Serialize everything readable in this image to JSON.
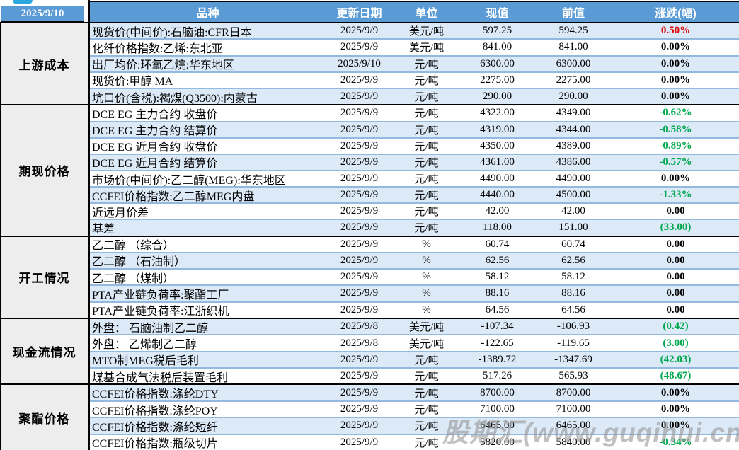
{
  "header": {
    "date": "2025/9/10",
    "columns": [
      "品种",
      "更新日期",
      "单位",
      "现值",
      "前值",
      "涨跌(幅)"
    ]
  },
  "watermark": "股期汇(www.guqihui.cn)",
  "colors": {
    "header_bg": "#5B9BD5",
    "stripe_blue": "#DCE9F7",
    "row_line": "#94B9DF",
    "cat_bg": "#EDEDED",
    "up_red": "#DD0000",
    "down_green": "#00A84F"
  },
  "sections": [
    {
      "category": "上游成本",
      "rows": [
        {
          "name": "现货价(中间价):石脑油:CFR日本",
          "date": "2025/9/9",
          "unit": "美元/吨",
          "current": "597.25",
          "previous": "594.25",
          "change": "0.50%",
          "trend": "up"
        },
        {
          "name": "化纤价格指数:乙烯:东北亚",
          "date": "2025/9/9",
          "unit": "美元/吨",
          "current": "841.00",
          "previous": "841.00",
          "change": "0.00%",
          "trend": "flat"
        },
        {
          "name": "出厂均价:环氧乙烷:华东地区",
          "date": "2025/9/10",
          "unit": "元/吨",
          "current": "6300.00",
          "previous": "6300.00",
          "change": "0.00%",
          "trend": "flat"
        },
        {
          "name": "现货价:甲醇 MA",
          "date": "2025/9/9",
          "unit": "元/吨",
          "current": "2275.00",
          "previous": "2275.00",
          "change": "0.00%",
          "trend": "flat"
        },
        {
          "name": "坑口价(含税):褐煤(Q3500):内蒙古",
          "date": "2025/9/9",
          "unit": "元/吨",
          "current": "290.00",
          "previous": "290.00",
          "change": "0.00%",
          "trend": "flat"
        }
      ]
    },
    {
      "category": "期现价格",
      "rows": [
        {
          "name": "DCE EG 主力合约 收盘价",
          "date": "2025/9/9",
          "unit": "元/吨",
          "current": "4322.00",
          "previous": "4349.00",
          "change": "-0.62%",
          "trend": "down"
        },
        {
          "name": "DCE EG 主力合约 结算价",
          "date": "2025/9/9",
          "unit": "元/吨",
          "current": "4319.00",
          "previous": "4344.00",
          "change": "-0.58%",
          "trend": "down"
        },
        {
          "name": "DCE EG 近月合约 收盘价",
          "date": "2025/9/9",
          "unit": "元/吨",
          "current": "4350.00",
          "previous": "4389.00",
          "change": "-0.89%",
          "trend": "down"
        },
        {
          "name": "DCE EG 近月合约 结算价",
          "date": "2025/9/9",
          "unit": "元/吨",
          "current": "4361.00",
          "previous": "4386.00",
          "change": "-0.57%",
          "trend": "down"
        },
        {
          "name": "市场价(中间价):乙二醇(MEG):华东地区",
          "date": "2025/9/9",
          "unit": "元/吨",
          "current": "4490.00",
          "previous": "4490.00",
          "change": "0.00%",
          "trend": "flat"
        },
        {
          "name": "CCFEI价格指数:乙二醇MEG内盘",
          "date": "2025/9/9",
          "unit": "元/吨",
          "current": "4440.00",
          "previous": "4500.00",
          "change": "-1.33%",
          "trend": "down"
        },
        {
          "name": "近远月价差",
          "date": "2025/9/9",
          "unit": "元/吨",
          "current": "42.00",
          "previous": "42.00",
          "change": "0.00",
          "trend": "flat"
        },
        {
          "name": "基差",
          "date": "2025/9/9",
          "unit": "元/吨",
          "current": "118.00",
          "previous": "151.00",
          "change": "(33.00)",
          "trend": "down"
        }
      ]
    },
    {
      "category": "开工情况",
      "rows": [
        {
          "name": "乙二醇 （综合）",
          "date": "2025/9/9",
          "unit": "%",
          "current": "60.74",
          "previous": "60.74",
          "change": "0.00",
          "trend": "flat"
        },
        {
          "name": "乙二醇 （石油制）",
          "date": "2025/9/9",
          "unit": "%",
          "current": "62.56",
          "previous": "62.56",
          "change": "0.00",
          "trend": "flat"
        },
        {
          "name": "乙二醇 （煤制）",
          "date": "2025/9/9",
          "unit": "%",
          "current": "58.12",
          "previous": "58.12",
          "change": "0.00",
          "trend": "flat"
        },
        {
          "name": "PTA产业链负荷率:聚酯工厂",
          "date": "2025/9/9",
          "unit": "%",
          "current": "88.16",
          "previous": "88.16",
          "change": "0.00",
          "trend": "flat"
        },
        {
          "name": "PTA产业链负荷率:江浙织机",
          "date": "2025/9/9",
          "unit": "%",
          "current": "64.56",
          "previous": "64.56",
          "change": "0.00",
          "trend": "flat"
        }
      ]
    },
    {
      "category": "现金流情况",
      "rows": [
        {
          "name": "外盘： 石脑油制乙二醇",
          "date": "2025/9/8",
          "unit": "美元/吨",
          "current": "-107.34",
          "previous": "-106.93",
          "change": "(0.42)",
          "trend": "down"
        },
        {
          "name": "外盘： 乙烯制乙二醇",
          "date": "2025/9/8",
          "unit": "美元/吨",
          "current": "-122.65",
          "previous": "-119.65",
          "change": "(3.00)",
          "trend": "down"
        },
        {
          "name": "MTO制MEG税后毛利",
          "date": "2025/9/9",
          "unit": "元/吨",
          "current": "-1389.72",
          "previous": "-1347.69",
          "change": "(42.03)",
          "trend": "down"
        },
        {
          "name": "煤基合成气法税后装置毛利",
          "date": "2025/9/9",
          "unit": "元/吨",
          "current": "517.26",
          "previous": "565.93",
          "change": "(48.67)",
          "trend": "down"
        }
      ]
    },
    {
      "category": "聚酯价格",
      "rows": [
        {
          "name": "CCFEI价格指数:涤纶DTY",
          "date": "2025/9/9",
          "unit": "元/吨",
          "current": "8700.00",
          "previous": "8700.00",
          "change": "0.00%",
          "trend": "flat"
        },
        {
          "name": "CCFEI价格指数:涤纶POY",
          "date": "2025/9/9",
          "unit": "元/吨",
          "current": "7100.00",
          "previous": "7100.00",
          "change": "0.00%",
          "trend": "flat"
        },
        {
          "name": "CCFEI价格指数:涤纶短纤",
          "date": "2025/9/9",
          "unit": "元/吨",
          "current": "6465.00",
          "previous": "6465.00",
          "change": "0.00%",
          "trend": "flat"
        },
        {
          "name": "CCFEI价格指数:瓶级切片",
          "date": "2025/9/9",
          "unit": "元/吨",
          "current": "5820.00",
          "previous": "5840.00",
          "change": "-0.34%",
          "trend": "down"
        }
      ]
    }
  ]
}
